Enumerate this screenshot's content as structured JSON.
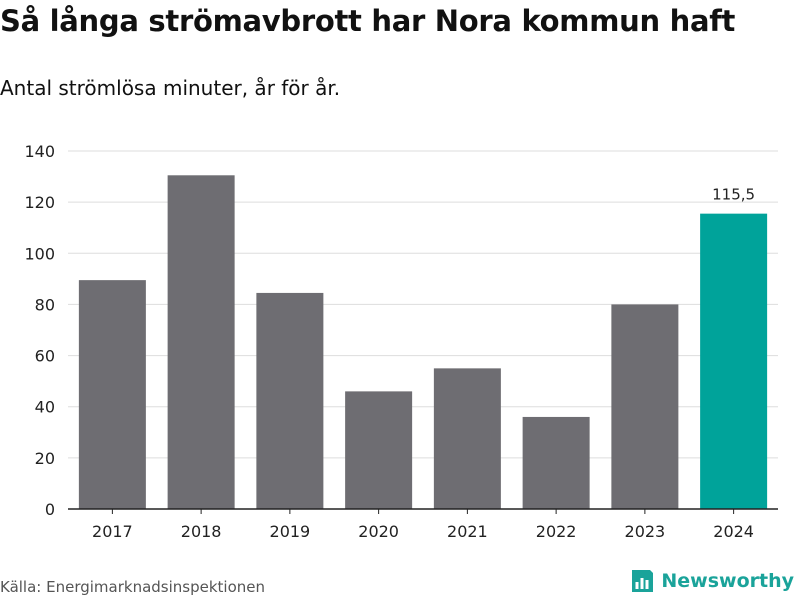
{
  "header": {
    "title": "Så långa strömavbrott har Nora kommun haft",
    "subtitle": "Antal strömlösa minuter, år för år."
  },
  "footer": {
    "source": "Källa: Energimarknadsinspektionen",
    "brand": "Newsworthy"
  },
  "colors": {
    "bar_default": "#6e6d72",
    "bar_highlight": "#00a39a",
    "grid": "#dddddd",
    "axis": "#222222"
  },
  "icons": {
    "brand_logo": "newsworthy-logo-icon"
  },
  "chart_data": {
    "type": "bar",
    "title": "Så långa strömavbrott har Nora kommun haft",
    "subtitle": "Antal strömlösa minuter, år för år.",
    "xlabel": "",
    "ylabel": "",
    "categories": [
      "2017",
      "2018",
      "2019",
      "2020",
      "2021",
      "2022",
      "2023",
      "2024"
    ],
    "values": [
      89.5,
      130.5,
      84.5,
      46,
      55,
      36,
      80,
      115.5
    ],
    "highlight_index": 7,
    "data_labels": [
      {
        "index": 7,
        "text": "115,5"
      }
    ],
    "ylim": [
      0,
      140
    ],
    "yticks": [
      0,
      20,
      40,
      60,
      80,
      100,
      120,
      140
    ],
    "grid": true,
    "legend": "none"
  }
}
